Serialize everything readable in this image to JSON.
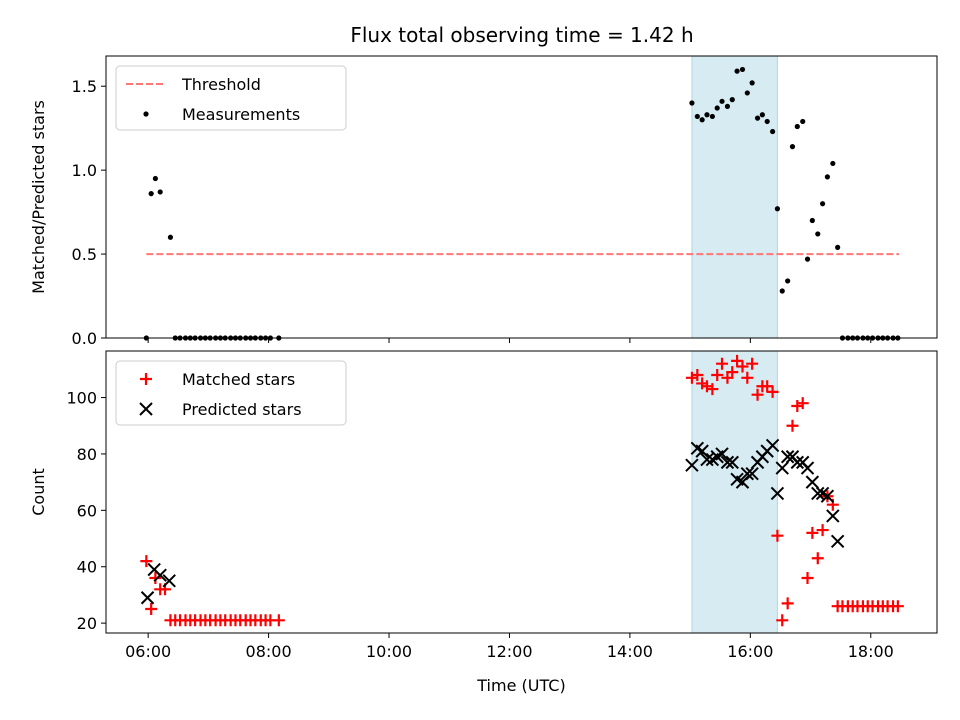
{
  "title": "Flux total observing time = 1.42 h",
  "colors": {
    "threshold": "#ff7777",
    "measurements": "#000000",
    "matched": "#ff0000",
    "predicted": "#000000",
    "span": "#add8e6"
  },
  "chart_data": [
    {
      "type": "scatter",
      "ylabel": "Matched/Predicted stars",
      "ylim": [
        0,
        1.68
      ],
      "yticks": [
        0.0,
        0.5,
        1.0,
        1.5
      ],
      "ytick_labels": [
        "0.0",
        "0.5",
        "1.0",
        "1.5"
      ],
      "xlim": [
        5.3,
        19.1
      ],
      "xticks": [
        6,
        8,
        10,
        12,
        14,
        16,
        18
      ],
      "xtick_labels": [
        "",
        "",
        "",
        "",
        "",
        "",
        ""
      ],
      "legend": {
        "position": "upper-left",
        "entries": [
          "Threshold",
          "Measurements"
        ]
      },
      "shaded_span": [
        15.03,
        16.45
      ],
      "threshold": {
        "name": "Threshold",
        "value": 0.5,
        "x_range": [
          5.97,
          18.47
        ],
        "style": "dashed"
      },
      "series": [
        {
          "name": "Measurements",
          "marker": "dot",
          "x": [
            5.97,
            6.05,
            6.12,
            6.2,
            6.37,
            6.45,
            6.53,
            6.62,
            6.7,
            6.78,
            6.87,
            6.95,
            7.03,
            7.12,
            7.2,
            7.28,
            7.37,
            7.45,
            7.53,
            7.62,
            7.7,
            7.78,
            7.87,
            7.95,
            8.03,
            8.17,
            15.03,
            15.12,
            15.2,
            15.28,
            15.37,
            15.45,
            15.53,
            15.62,
            15.7,
            15.78,
            15.87,
            15.95,
            16.03,
            16.12,
            16.2,
            16.28,
            16.37,
            16.45,
            16.53,
            16.62,
            16.7,
            16.78,
            16.87,
            16.95,
            17.03,
            17.12,
            17.2,
            17.28,
            17.37,
            17.45,
            17.53,
            17.62,
            17.7,
            17.78,
            17.87,
            17.95,
            18.03,
            18.12,
            18.2,
            18.28,
            18.37,
            18.45
          ],
          "y": [
            0.0,
            0.86,
            0.95,
            0.87,
            0.6,
            0.0,
            0.0,
            0.0,
            0.0,
            0.0,
            0.0,
            0.0,
            0.0,
            0.0,
            0.0,
            0.0,
            0.0,
            0.0,
            0.0,
            0.0,
            0.0,
            0.0,
            0.0,
            0.0,
            0.0,
            0.0,
            1.4,
            1.32,
            1.3,
            1.33,
            1.32,
            1.37,
            1.41,
            1.38,
            1.42,
            1.59,
            1.6,
            1.46,
            1.52,
            1.31,
            1.33,
            1.29,
            1.23,
            0.77,
            0.28,
            0.34,
            1.14,
            1.26,
            1.29,
            0.47,
            0.7,
            0.62,
            0.8,
            0.96,
            1.04,
            0.54,
            0.0,
            0.0,
            0.0,
            0.0,
            0.0,
            0.0,
            0.0,
            0.0,
            0.0,
            0.0,
            0.0,
            0.0
          ]
        }
      ]
    },
    {
      "type": "scatter",
      "title": "",
      "xlabel": "Time (UTC)",
      "ylabel": "Count",
      "ylim": [
        16.5,
        116.5
      ],
      "yticks": [
        20,
        40,
        60,
        80,
        100
      ],
      "ytick_labels": [
        "20",
        "40",
        "60",
        "80",
        "100"
      ],
      "xlim": [
        5.3,
        19.1
      ],
      "xticks": [
        6,
        8,
        10,
        12,
        14,
        16,
        18
      ],
      "xtick_labels": [
        "06:00",
        "08:00",
        "10:00",
        "12:00",
        "14:00",
        "16:00",
        "18:00"
      ],
      "legend": {
        "position": "upper-left",
        "entries": [
          "Matched stars",
          "Predicted stars"
        ]
      },
      "shaded_span": [
        15.03,
        16.45
      ],
      "series": [
        {
          "name": "Matched stars",
          "marker": "plus",
          "x": [
            5.97,
            6.05,
            6.12,
            6.2,
            6.28,
            6.37,
            6.45,
            6.53,
            6.62,
            6.7,
            6.78,
            6.87,
            6.95,
            7.03,
            7.12,
            7.2,
            7.28,
            7.37,
            7.45,
            7.53,
            7.62,
            7.7,
            7.78,
            7.87,
            7.95,
            8.03,
            8.17,
            15.03,
            15.12,
            15.2,
            15.28,
            15.37,
            15.45,
            15.53,
            15.62,
            15.7,
            15.78,
            15.87,
            15.95,
            16.03,
            16.12,
            16.2,
            16.28,
            16.37,
            16.45,
            16.53,
            16.62,
            16.7,
            16.78,
            16.87,
            16.95,
            17.03,
            17.12,
            17.2,
            17.28,
            17.37,
            17.45,
            17.53,
            17.62,
            17.7,
            17.78,
            17.87,
            17.95,
            18.03,
            18.12,
            18.2,
            18.28,
            18.37,
            18.45
          ],
          "y": [
            42,
            25,
            36,
            32,
            32,
            21,
            21,
            21,
            21,
            21,
            21,
            21,
            21,
            21,
            21,
            21,
            21,
            21,
            21,
            21,
            21,
            21,
            21,
            21,
            21,
            21,
            21,
            107,
            108,
            105,
            104,
            103,
            108,
            112,
            107,
            109,
            113,
            111,
            107,
            112,
            101,
            104,
            104,
            102,
            51,
            21,
            27,
            90,
            97,
            98,
            36,
            52,
            43,
            53,
            65,
            62,
            26,
            26,
            26,
            26,
            26,
            26,
            26,
            26,
            26,
            26,
            26,
            26,
            26
          ]
        },
        {
          "name": "Predicted stars",
          "marker": "x",
          "x": [
            5.99,
            6.1,
            6.2,
            6.35,
            15.03,
            15.12,
            15.2,
            15.28,
            15.37,
            15.45,
            15.53,
            15.62,
            15.7,
            15.78,
            15.87,
            15.95,
            16.03,
            16.12,
            16.2,
            16.28,
            16.37,
            16.45,
            16.53,
            16.62,
            16.7,
            16.78,
            16.87,
            16.95,
            17.03,
            17.12,
            17.2,
            17.28,
            17.37,
            17.45
          ],
          "y": [
            29,
            39,
            37,
            35,
            76,
            82,
            81,
            78,
            78,
            79,
            80,
            77,
            77,
            71,
            70,
            73,
            73,
            77,
            79,
            81,
            83,
            66,
            75,
            79,
            79,
            77,
            77,
            75,
            70,
            66,
            66,
            65,
            58,
            49
          ]
        }
      ]
    }
  ]
}
